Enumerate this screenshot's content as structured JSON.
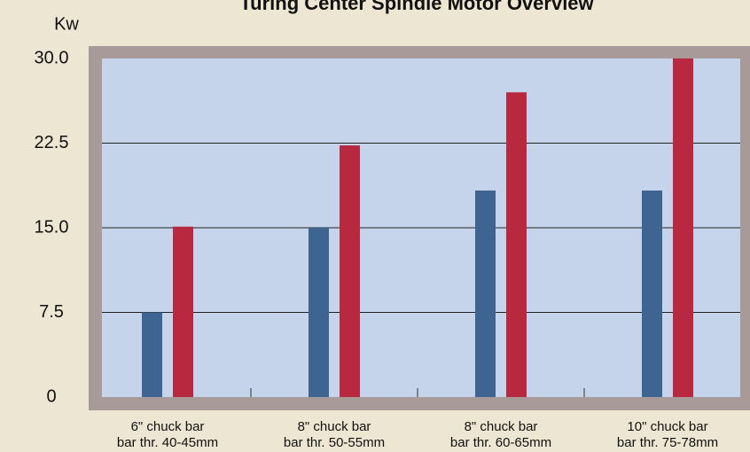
{
  "chart_data": {
    "type": "bar",
    "title": "Turing Center Spindle Motor Overview",
    "y_label": "Kw",
    "categories": [
      [
        "6\" chuck bar",
        "bar thr. 40-45mm"
      ],
      [
        "8\" chuck bar",
        "bar thr. 50-55mm"
      ],
      [
        "8\" chuck bar",
        "bar thr. 60-65mm"
      ],
      [
        "10\" chuck bar",
        "bar thr. 75-78mm"
      ]
    ],
    "series": [
      {
        "color": "#3e6591",
        "values": [
          7.5,
          15,
          18.3,
          18.3
        ]
      },
      {
        "color": "#b8293f",
        "values": [
          15.1,
          22.3,
          27,
          30
        ]
      }
    ],
    "ylim": [
      0,
      30
    ],
    "yticks": [
      0,
      7.5,
      {
        "value": 15,
        "label": "15.0"
      },
      22.5,
      {
        "value": 30,
        "label": "30.0"
      }
    ],
    "grid": true
  }
}
